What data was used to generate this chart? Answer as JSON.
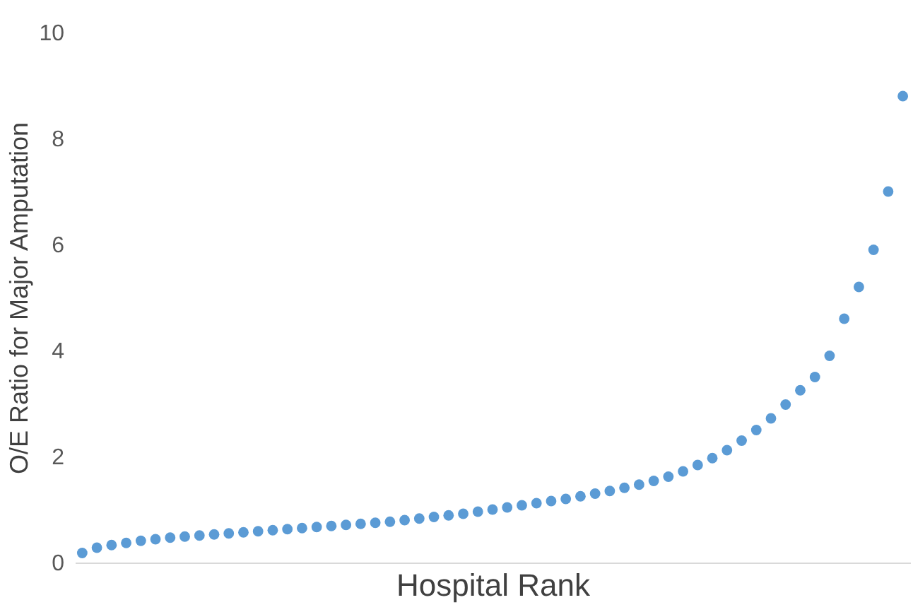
{
  "chart_data": {
    "type": "scatter",
    "xlabel": "Hospital Rank",
    "ylabel": "O/E Ratio for Major Amputation",
    "ylim": [
      0,
      10
    ],
    "yticks": [
      0,
      2,
      4,
      6,
      8,
      10
    ],
    "grid": false,
    "marker": "circle",
    "tick_labels": "y",
    "categories": [
      null,
      null,
      null,
      null,
      null,
      null,
      null,
      null,
      null,
      null,
      null,
      null,
      null,
      null,
      null,
      null,
      null,
      null,
      null,
      null,
      null,
      null,
      null,
      null,
      null,
      null,
      null,
      null,
      null,
      null,
      null,
      null,
      null,
      null,
      null,
      null,
      null,
      null,
      null,
      null,
      null,
      null,
      null,
      null,
      null,
      null,
      null,
      null,
      null,
      null,
      null,
      null,
      null,
      null,
      null,
      null,
      null
    ],
    "series": [
      {
        "color": "#5b9bd5",
        "values": [
          0.18,
          0.28,
          0.33,
          0.37,
          0.41,
          0.44,
          0.47,
          0.49,
          0.51,
          0.53,
          0.55,
          0.57,
          0.59,
          0.61,
          0.63,
          0.65,
          0.67,
          0.69,
          0.71,
          0.73,
          0.75,
          0.77,
          0.8,
          0.83,
          0.86,
          0.89,
          0.92,
          0.96,
          1.0,
          1.04,
          1.08,
          1.12,
          1.16,
          1.2,
          1.25,
          1.3,
          1.35,
          1.41,
          1.47,
          1.54,
          1.62,
          1.72,
          1.84,
          1.97,
          2.12,
          2.3,
          2.5,
          2.72,
          2.98,
          3.25,
          3.5,
          3.9,
          4.6,
          5.2,
          5.9,
          7.0,
          8.8
        ]
      }
    ]
  }
}
